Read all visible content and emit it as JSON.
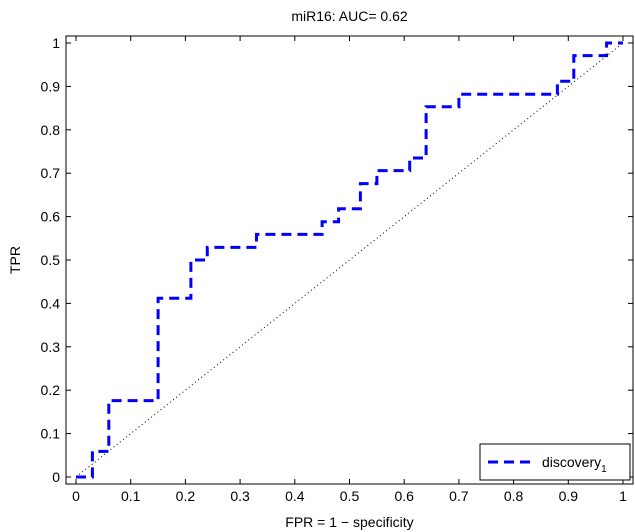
{
  "chart_data": {
    "type": "line",
    "title": "miR16: AUC= 0.62",
    "xlabel": "FPR = 1 − specificity",
    "ylabel": "TPR",
    "xlim": [
      0,
      1
    ],
    "ylim": [
      0,
      1
    ],
    "xticks": [
      "0",
      "0.1",
      "0.2",
      "0.3",
      "0.4",
      "0.5",
      "0.6",
      "0.7",
      "0.8",
      "0.9",
      "1"
    ],
    "yticks": [
      "0",
      "0.1",
      "0.2",
      "0.3",
      "0.4",
      "0.5",
      "0.6",
      "0.7",
      "0.8",
      "0.9",
      "1"
    ],
    "grid": false,
    "legend_position": "bottom-right",
    "diagonal_reference": true,
    "series": [
      {
        "name": "discovery",
        "name_subscript": "1",
        "color": "#0000ff",
        "style": "dashed",
        "x": [
          0,
          0.03,
          0.03,
          0.06,
          0.06,
          0.15,
          0.15,
          0.21,
          0.21,
          0.24,
          0.24,
          0.33,
          0.33,
          0.45,
          0.45,
          0.48,
          0.48,
          0.52,
          0.52,
          0.55,
          0.55,
          0.61,
          0.61,
          0.64,
          0.64,
          0.7,
          0.7,
          0.88,
          0.88,
          0.91,
          0.91,
          0.97,
          0.97,
          1.0
        ],
        "y": [
          0,
          0,
          0.059,
          0.059,
          0.176,
          0.176,
          0.412,
          0.412,
          0.5,
          0.5,
          0.529,
          0.529,
          0.559,
          0.559,
          0.588,
          0.588,
          0.618,
          0.618,
          0.676,
          0.676,
          0.706,
          0.706,
          0.735,
          0.735,
          0.853,
          0.853,
          0.882,
          0.882,
          0.912,
          0.912,
          0.971,
          0.971,
          1.0,
          1.0
        ]
      }
    ]
  }
}
